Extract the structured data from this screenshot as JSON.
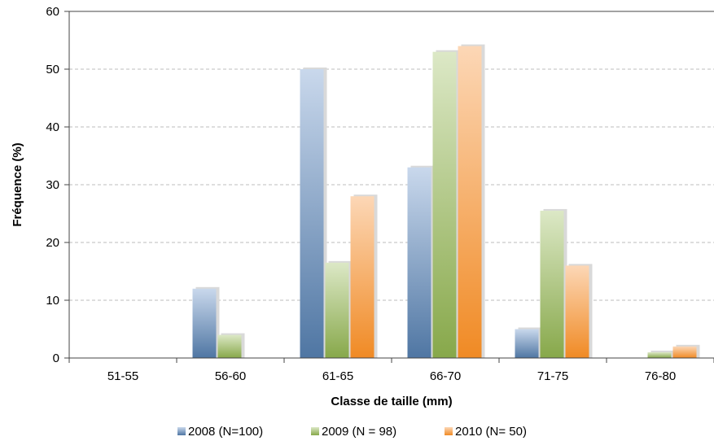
{
  "chart_data": {
    "type": "bar",
    "categories": [
      "51-55",
      "56-60",
      "61-65",
      "66-70",
      "71-75",
      "76-80"
    ],
    "series": [
      {
        "name": "2008 (N=100)",
        "values": [
          0,
          12,
          50,
          33,
          5,
          0
        ]
      },
      {
        "name": "2009 (N = 98)",
        "values": [
          0,
          4,
          16.5,
          53,
          25.5,
          1
        ]
      },
      {
        "name": "2010 (N= 50)",
        "values": [
          0,
          0,
          28,
          54,
          16,
          2
        ]
      }
    ],
    "xlabel": "Classe de taille (mm)",
    "ylabel": "Fréquence (%)",
    "ylim": [
      0,
      60
    ],
    "yticks": [
      "0",
      "10",
      "20",
      "30",
      "40",
      "50",
      "60"
    ],
    "grid": true,
    "legend_position": "bottom",
    "colors": {
      "2008": {
        "dark": "#4f76a3",
        "light": "#c9d8ec"
      },
      "2009": {
        "dark": "#87a84a",
        "light": "#dce8c6"
      },
      "2010": {
        "dark": "#f08a24",
        "light": "#fcd7b6"
      }
    }
  }
}
